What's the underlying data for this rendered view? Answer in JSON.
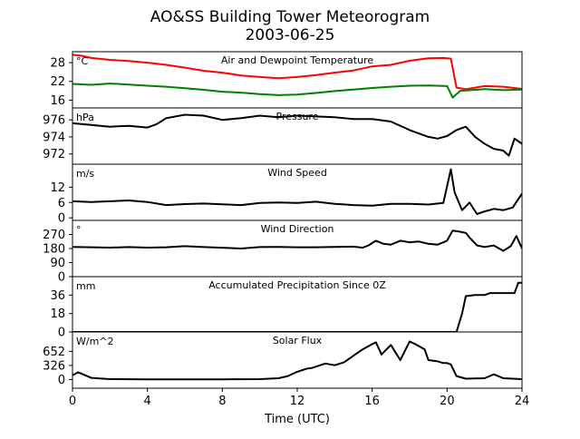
{
  "chart_data": {
    "type": "line",
    "title_line1": "AO&SS Building Tower Meteorogram",
    "title_line2": "2003-06-25",
    "xlabel": "Time (UTC)",
    "xlim": [
      0,
      24
    ],
    "xticks": [
      "0",
      "4",
      "8",
      "12",
      "16",
      "20",
      "24"
    ],
    "panels": [
      {
        "name": "temperature",
        "title": "Air and Dewpoint Temperature",
        "unit": "°C",
        "ylim": [
          13.5,
          31.5
        ],
        "ticks": [
          16,
          22,
          28
        ],
        "series": [
          {
            "name": "Air Temperature",
            "color": "#ff0000",
            "x": [
              0,
              0.5,
              1,
              2,
              3,
              4,
              5,
              6,
              7,
              8,
              9,
              10,
              11,
              12,
              13,
              14,
              15,
              16,
              17,
              18,
              19,
              19.8,
              20.2,
              20.5,
              21,
              22,
              23,
              24
            ],
            "y": [
              30.5,
              30.2,
              29.5,
              28.9,
              28.5,
              28,
              27.3,
              26.4,
              25.4,
              24.8,
              23.9,
              23.4,
              23,
              23.4,
              24,
              24.8,
              25.5,
              26.8,
              27.3,
              28.6,
              29.4,
              29.5,
              29.3,
              20,
              19.5,
              20.5,
              20.3,
              19.6
            ]
          },
          {
            "name": "Dewpoint",
            "color": "#008000",
            "x": [
              0,
              1,
              2,
              3,
              4,
              5,
              6,
              7,
              8,
              9,
              10,
              11,
              12,
              13,
              14,
              15,
              16,
              17,
              18,
              19,
              20,
              20.3,
              20.7,
              21,
              22,
              23,
              24
            ],
            "y": [
              21.2,
              20.9,
              21.3,
              21,
              20.6,
              20.3,
              19.8,
              19.3,
              18.7,
              18.4,
              17.9,
              17.6,
              17.8,
              18.3,
              18.9,
              19.4,
              19.9,
              20.3,
              20.6,
              20.7,
              20.5,
              16.8,
              19,
              19.1,
              19.5,
              19.2,
              19.4
            ]
          }
        ]
      },
      {
        "name": "pressure",
        "title": "Pressure",
        "unit": "hPa",
        "ylim": [
          970.8,
          977.4
        ],
        "ticks": [
          972,
          974,
          976
        ],
        "series": [
          {
            "name": "Pressure",
            "color": "#000000",
            "x": [
              0,
              1,
              2,
              3,
              4,
              4.5,
              5,
              6,
              7,
              8,
              9,
              10,
              11,
              12,
              13,
              14,
              15,
              16,
              17,
              18,
              19,
              19.5,
              20,
              20.5,
              21,
              21.5,
              22,
              22.5,
              23,
              23.3,
              23.6,
              24
            ],
            "y": [
              975.6,
              975.4,
              975.2,
              975.3,
              975.1,
              975.5,
              976.2,
              976.6,
              976.5,
              976,
              976.2,
              976.5,
              976.3,
              976.5,
              976.4,
              976.3,
              976.1,
              976.1,
              975.8,
              974.8,
              974,
              973.8,
              974.1,
              974.8,
              975.2,
              974,
              973.2,
              972.6,
              972.4,
              971.8,
              973.8,
              973.2
            ]
          }
        ]
      },
      {
        "name": "wind_speed",
        "title": "Wind Speed",
        "unit": "m/s",
        "ylim": [
          -1,
          21
        ],
        "ticks": [
          0,
          6,
          12
        ],
        "series": [
          {
            "name": "Wind Speed",
            "color": "#000000",
            "x": [
              0,
              1,
              2,
              3,
              4,
              5,
              6,
              7,
              8,
              9,
              10,
              11,
              12,
              13,
              14,
              15,
              16,
              17,
              18,
              19,
              19.8,
              20.2,
              20.4,
              20.8,
              21.2,
              21.6,
              22,
              22.5,
              23,
              23.5,
              24
            ],
            "y": [
              6.5,
              6.2,
              6.5,
              6.8,
              6.2,
              5,
              5.4,
              5.6,
              5.3,
              5,
              5.8,
              6,
              5.8,
              6.3,
              5.5,
              5,
              4.8,
              5.5,
              5.5,
              5.2,
              5.8,
              19,
              10,
              3,
              6,
              1.5,
              2.5,
              3.5,
              3,
              4,
              9.5
            ]
          }
        ]
      },
      {
        "name": "wind_direction",
        "title": "Wind Direction",
        "unit": "°",
        "ylim": [
          0,
          360
        ],
        "ticks": [
          0,
          90,
          180,
          270
        ],
        "series": [
          {
            "name": "Wind Direction",
            "color": "#000000",
            "x": [
              0,
              1,
              2,
              3,
              4,
              5,
              6,
              7,
              8,
              9,
              10,
              11,
              12,
              13,
              14,
              15,
              15.5,
              15.8,
              16.2,
              16.6,
              17,
              17.5,
              18,
              18.5,
              19,
              19.5,
              20,
              20.3,
              20.6,
              21,
              21.2,
              21.6,
              22,
              22.5,
              23,
              23.4,
              23.7,
              24
            ],
            "y": [
              190,
              188,
              186,
              189,
              186,
              188,
              195,
              189,
              185,
              180,
              189,
              190,
              188,
              188,
              190,
              192,
              185,
              200,
              230,
              210,
              205,
              230,
              220,
              225,
              210,
              205,
              230,
              295,
              290,
              280,
              250,
              200,
              190,
              200,
              165,
              195,
              260,
              180
            ]
          }
        ]
      },
      {
        "name": "precipitation",
        "title": "Accumulated Precipitation Since 0Z",
        "unit": "mm",
        "ylim": [
          0,
          54
        ],
        "ticks": [
          0,
          18,
          36
        ],
        "series": [
          {
            "name": "Accumulated Precipitation",
            "color": "#000000",
            "x": [
              0,
              20.5,
              20.8,
              21,
              21.5,
              22,
              22.3,
              23,
              23.6,
              23.8,
              24
            ],
            "y": [
              0,
              0,
              18,
              35,
              36,
              36,
              38,
              38,
              38,
              48,
              48
            ]
          }
        ]
      },
      {
        "name": "solar_flux",
        "title": "Solar Flux",
        "unit": "W/m^2",
        "ylim": [
          -200,
          1100
        ],
        "ticks": [
          0,
          326,
          652
        ],
        "series": [
          {
            "name": "Solar Flux",
            "color": "#000000",
            "x": [
              0,
              0.3,
              1,
              2,
              4,
              6,
              8,
              10,
              11,
              11.5,
              12,
              12.5,
              12.8,
              13,
              13.5,
              14,
              14.5,
              15,
              15.5,
              16,
              16.2,
              16.5,
              17,
              17.5,
              18,
              18.3,
              18.8,
              19,
              19.5,
              19.8,
              20,
              20.2,
              20.5,
              21,
              22,
              22.5,
              23,
              24
            ],
            "y": [
              100,
              170,
              40,
              10,
              5,
              5,
              5,
              10,
              30,
              80,
              180,
              250,
              270,
              300,
              370,
              330,
              400,
              550,
              700,
              820,
              860,
              580,
              800,
              450,
              880,
              820,
              700,
              450,
              420,
              380,
              380,
              350,
              80,
              20,
              30,
              120,
              30,
              10
            ]
          }
        ]
      }
    ]
  }
}
